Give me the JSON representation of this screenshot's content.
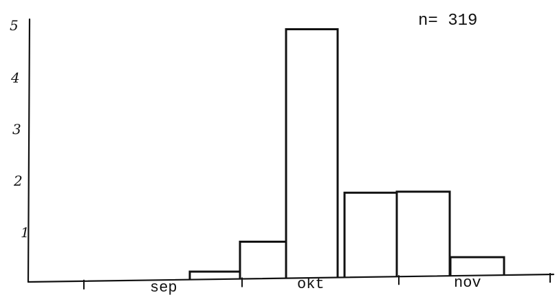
{
  "chart_data": {
    "type": "bar",
    "annotation": "n= 319",
    "xlabel": "",
    "ylabel": "",
    "ylim": [
      0,
      5
    ],
    "yticks": [
      "1",
      "2",
      "3",
      "4",
      "5"
    ],
    "month_labels": [
      "sep",
      "okt",
      "nov"
    ],
    "series": [
      {
        "values": [
          0.2,
          0.78,
          4.9,
          1.73,
          1.75,
          0.48
        ]
      }
    ],
    "grid": false,
    "legend": "none"
  }
}
